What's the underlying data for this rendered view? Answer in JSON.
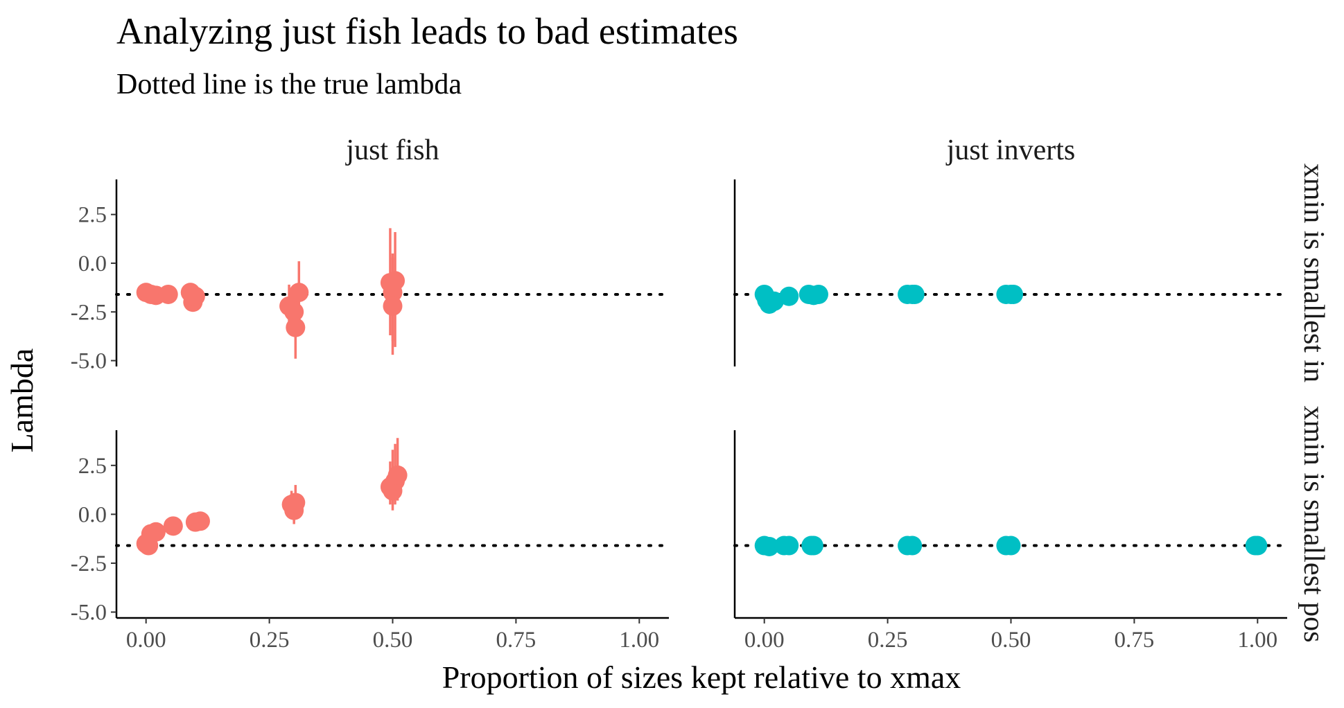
{
  "chart_data": {
    "type": "scatter",
    "title": "Analyzing just fish leads to bad estimates",
    "subtitle": "Dotted line is the true lambda",
    "xlabel": "Proportion of sizes kept relative to xmax",
    "ylabel": "Lambda",
    "xlim": [
      -0.06,
      1.06
    ],
    "ylim": [
      -5.3,
      4.3
    ],
    "x_ticks": [
      0.0,
      0.25,
      0.5,
      0.75,
      1.0
    ],
    "x_tick_labels": [
      "0.00",
      "0.25",
      "0.50",
      "0.75",
      "1.00"
    ],
    "y_ticks": [
      -5.0,
      -2.5,
      0.0,
      2.5
    ],
    "y_tick_labels": [
      "-5.0",
      "-2.5",
      "0.0",
      "2.5"
    ],
    "true_lambda": -1.6,
    "grid": false,
    "legend": "none",
    "columns": [
      "just fish",
      "just inverts"
    ],
    "rows": [
      "xmin is smallest in",
      "xmin is smallest pos"
    ],
    "colors": {
      "just fish": "#F8766D",
      "just inverts": "#00BFC4"
    },
    "panels": [
      {
        "column": "just fish",
        "row": "xmin is smallest in",
        "points": [
          {
            "x": 0.0,
            "y": -1.5,
            "lo": -1.8,
            "hi": -1.2
          },
          {
            "x": 0.01,
            "y": -1.6,
            "lo": -1.9,
            "hi": -1.3
          },
          {
            "x": 0.02,
            "y": -1.65,
            "lo": -1.95,
            "hi": -1.35
          },
          {
            "x": 0.045,
            "y": -1.6,
            "lo": -1.9,
            "hi": -1.3
          },
          {
            "x": 0.09,
            "y": -1.5,
            "lo": -1.8,
            "hi": -1.2
          },
          {
            "x": 0.095,
            "y": -2.0,
            "lo": -2.3,
            "hi": -1.7
          },
          {
            "x": 0.1,
            "y": -1.7,
            "lo": -2.0,
            "hi": -1.4
          },
          {
            "x": 0.29,
            "y": -2.2,
            "lo": -3.3,
            "hi": -1.1
          },
          {
            "x": 0.3,
            "y": -2.5,
            "lo": -3.6,
            "hi": -1.4
          },
          {
            "x": 0.303,
            "y": -3.3,
            "lo": -4.9,
            "hi": -1.7
          },
          {
            "x": 0.31,
            "y": -1.5,
            "lo": -3.0,
            "hi": 0.1
          },
          {
            "x": 0.495,
            "y": -1.0,
            "lo": -3.7,
            "hi": 1.8
          },
          {
            "x": 0.5,
            "y": -1.5,
            "lo": -4.0,
            "hi": 0.5
          },
          {
            "x": 0.5,
            "y": -2.2,
            "lo": -4.7,
            "hi": 0.3
          },
          {
            "x": 0.505,
            "y": -0.9,
            "lo": -4.3,
            "hi": 1.6
          }
        ]
      },
      {
        "column": "just inverts",
        "row": "xmin is smallest in",
        "points": [
          {
            "x": 0.0,
            "y": -1.6,
            "lo": -1.75,
            "hi": -1.45
          },
          {
            "x": 0.005,
            "y": -1.9,
            "lo": -2.05,
            "hi": -1.75
          },
          {
            "x": 0.01,
            "y": -2.1,
            "lo": -2.25,
            "hi": -1.95
          },
          {
            "x": 0.02,
            "y": -1.95,
            "lo": -2.1,
            "hi": -1.8
          },
          {
            "x": 0.05,
            "y": -1.7,
            "lo": -1.85,
            "hi": -1.55
          },
          {
            "x": 0.09,
            "y": -1.6,
            "lo": -1.75,
            "hi": -1.45
          },
          {
            "x": 0.1,
            "y": -1.65,
            "lo": -1.8,
            "hi": -1.5
          },
          {
            "x": 0.11,
            "y": -1.6,
            "lo": -1.75,
            "hi": -1.45
          },
          {
            "x": 0.29,
            "y": -1.6,
            "lo": -1.75,
            "hi": -1.45
          },
          {
            "x": 0.3,
            "y": -1.6,
            "lo": -1.75,
            "hi": -1.45
          },
          {
            "x": 0.305,
            "y": -1.6,
            "lo": -1.75,
            "hi": -1.45
          },
          {
            "x": 0.49,
            "y": -1.6,
            "lo": -1.75,
            "hi": -1.45
          },
          {
            "x": 0.5,
            "y": -1.6,
            "lo": -1.75,
            "hi": -1.45
          },
          {
            "x": 0.505,
            "y": -1.6,
            "lo": -1.75,
            "hi": -1.45
          }
        ]
      },
      {
        "column": "just fish",
        "row": "xmin is smallest pos",
        "points": [
          {
            "x": 0.0,
            "y": -1.5,
            "lo": -1.8,
            "hi": -1.2
          },
          {
            "x": 0.005,
            "y": -1.6,
            "lo": -1.9,
            "hi": -1.3
          },
          {
            "x": 0.01,
            "y": -1.0,
            "lo": -1.3,
            "hi": -0.7
          },
          {
            "x": 0.02,
            "y": -0.9,
            "lo": -1.2,
            "hi": -0.6
          },
          {
            "x": 0.055,
            "y": -0.6,
            "lo": -0.9,
            "hi": -0.3
          },
          {
            "x": 0.1,
            "y": -0.4,
            "lo": -0.7,
            "hi": -0.1
          },
          {
            "x": 0.11,
            "y": -0.35,
            "lo": -0.65,
            "hi": -0.05
          },
          {
            "x": 0.295,
            "y": 0.5,
            "lo": -0.2,
            "hi": 1.2
          },
          {
            "x": 0.3,
            "y": 0.2,
            "lo": -0.5,
            "hi": 0.9
          },
          {
            "x": 0.303,
            "y": 0.6,
            "lo": -0.2,
            "hi": 1.5
          },
          {
            "x": 0.495,
            "y": 1.4,
            "lo": 0.5,
            "hi": 2.7
          },
          {
            "x": 0.5,
            "y": 1.2,
            "lo": 0.2,
            "hi": 3.3
          },
          {
            "x": 0.505,
            "y": 1.7,
            "lo": 0.5,
            "hi": 3.6
          },
          {
            "x": 0.51,
            "y": 2.0,
            "lo": 0.7,
            "hi": 3.9
          }
        ]
      },
      {
        "column": "just inverts",
        "row": "xmin is smallest pos",
        "points": [
          {
            "x": 0.0,
            "y": -1.6,
            "lo": -1.75,
            "hi": -1.45
          },
          {
            "x": 0.01,
            "y": -1.65,
            "lo": -1.8,
            "hi": -1.5
          },
          {
            "x": 0.04,
            "y": -1.6,
            "lo": -1.75,
            "hi": -1.45
          },
          {
            "x": 0.05,
            "y": -1.6,
            "lo": -1.75,
            "hi": -1.45
          },
          {
            "x": 0.095,
            "y": -1.6,
            "lo": -1.75,
            "hi": -1.45
          },
          {
            "x": 0.1,
            "y": -1.6,
            "lo": -1.75,
            "hi": -1.45
          },
          {
            "x": 0.29,
            "y": -1.6,
            "lo": -1.75,
            "hi": -1.45
          },
          {
            "x": 0.3,
            "y": -1.6,
            "lo": -1.75,
            "hi": -1.45
          },
          {
            "x": 0.49,
            "y": -1.6,
            "lo": -1.75,
            "hi": -1.45
          },
          {
            "x": 0.5,
            "y": -1.6,
            "lo": -1.75,
            "hi": -1.45
          },
          {
            "x": 0.995,
            "y": -1.6,
            "lo": -1.75,
            "hi": -1.45
          },
          {
            "x": 1.0,
            "y": -1.6,
            "lo": -1.75,
            "hi": -1.45
          }
        ]
      }
    ]
  }
}
